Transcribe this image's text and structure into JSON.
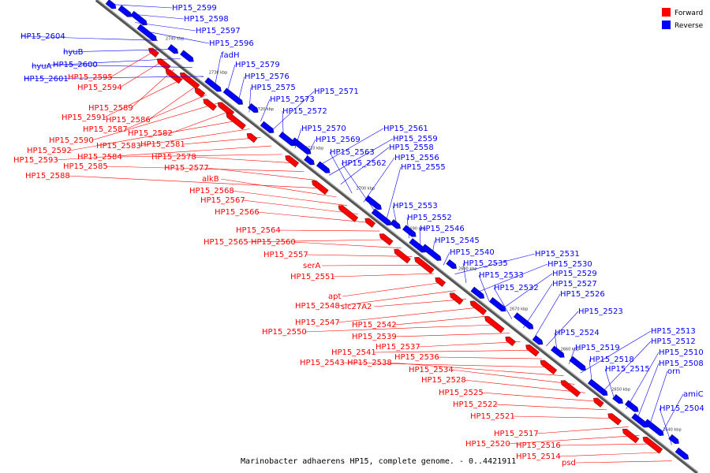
{
  "caption": "Marinobacter adhaerens HP15, complete genome. - 0..4421911",
  "legend": [
    {
      "label": "Forward",
      "color": "#ff0000"
    },
    {
      "label": "Reverse",
      "color": "#0000ff"
    }
  ],
  "colors": {
    "forward": "#ff0000",
    "reverse": "#0000ff",
    "axis": "#888888"
  },
  "kbp_ticks": [
    "2740 kbp",
    "2730 kbp",
    "2720 kbp",
    "2710 kbp",
    "2700 kbp",
    "2690 kbp",
    "2680 kbp",
    "2670 kbp",
    "2660 kbp",
    "2650 kbp",
    "2640 kbp"
  ],
  "reverse_labels": [
    "HP15_2599",
    "HP15_2598",
    "HP15_2597",
    "HP15_2596",
    "HP15_2604",
    "hyuB",
    "hyuA",
    "HP15_2600",
    "HP15_2601",
    "fadH",
    "HP15_2579",
    "HP15_2576",
    "HP15_2575",
    "HP15_2573",
    "HP15_2571",
    "HP15_2572",
    "HP15_2570",
    "HP15_2569",
    "HP15_2561",
    "HP15_2559",
    "HP15_2558",
    "HP15_2563",
    "HP15_2556",
    "HP15_2562",
    "HP15_2555",
    "HP15_2553",
    "HP15_2552",
    "HP15_2546",
    "HP15_2545",
    "HP15_2540",
    "HP15_2531",
    "HP15_2535",
    "HP15_2530",
    "HP15_2533",
    "HP15_2529",
    "HP15_2532",
    "HP15_2527",
    "HP15_2526",
    "HP15_2523",
    "HP15_2524",
    "HP15_2519",
    "HP15_2513",
    "HP15_2518",
    "HP15_2512",
    "HP15_2515",
    "HP15_2510",
    "HP15_2508",
    "orn",
    "amiC",
    "HP15_2504"
  ],
  "forward_labels": [
    "HP15_2595",
    "HP15_2594",
    "HP15_2589",
    "HP15_2591",
    "HP15_2586",
    "HP15_2587",
    "HP15_2590",
    "HP15_2582",
    "HP15_2592",
    "HP15_2583",
    "HP15_2581",
    "HP15_2593",
    "HP15_2584",
    "HP15_2578",
    "HP15_2585",
    "HP15_2577",
    "HP15_2588",
    "alkB",
    "HP15_2568",
    "HP15_2567",
    "HP15_2566",
    "HP15_2564",
    "HP15_2565",
    "HP15_2560",
    "HP15_2557",
    "serA",
    "HP15_2551",
    "apt",
    "HP15_2548",
    "slc27A2",
    "HP15_2547",
    "HP15_2542",
    "HP15_2550",
    "HP15_2539",
    "HP15_2537",
    "HP15_2541",
    "HP15_2536",
    "HP15_2543",
    "HP15_2538",
    "HP15_2534",
    "HP15_2528",
    "HP15_2525",
    "HP15_2522",
    "HP15_2521",
    "HP15_2517",
    "HP15_2520",
    "HP15_2516",
    "HP15_2514",
    "psd"
  ]
}
